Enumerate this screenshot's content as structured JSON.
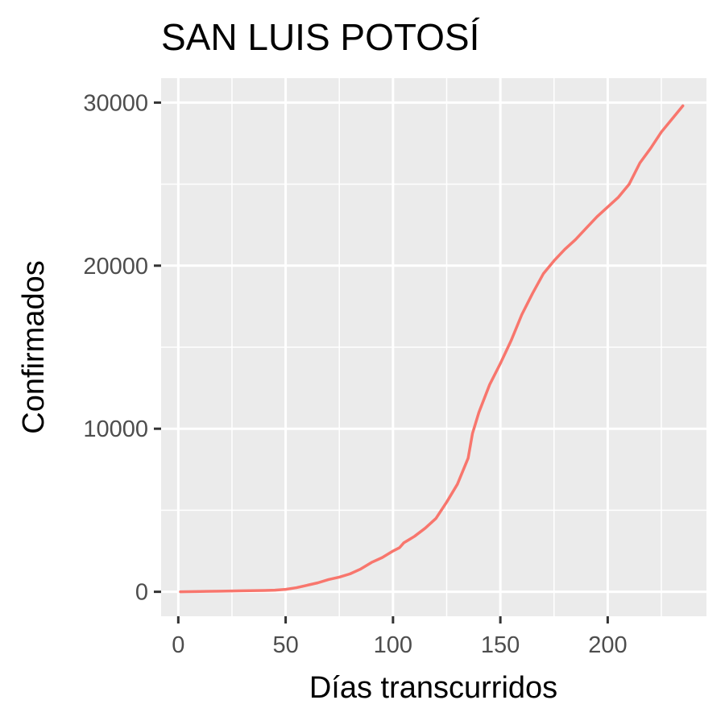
{
  "chart_data": {
    "type": "line",
    "title": "SAN LUIS POTOSÍ",
    "xlabel": "Días transcurridos",
    "ylabel": "Confirmados",
    "xlim": [
      -8,
      246
    ],
    "ylim": [
      -1500,
      31500
    ],
    "x_ticks": [
      0,
      50,
      100,
      150,
      200
    ],
    "y_ticks": [
      0,
      10000,
      20000,
      30000
    ],
    "x_tick_labels": [
      "0",
      "50",
      "100",
      "150",
      "200"
    ],
    "y_tick_labels": [
      "0",
      "10000",
      "20000",
      "30000"
    ],
    "grid": true,
    "legend": "none",
    "series": [
      {
        "color": "#F8766D",
        "x": [
          1,
          10,
          20,
          30,
          40,
          45,
          50,
          55,
          60,
          65,
          70,
          75,
          80,
          85,
          90,
          95,
          100,
          103,
          105,
          110,
          115,
          120,
          125,
          130,
          135,
          137,
          140,
          145,
          150,
          155,
          160,
          165,
          170,
          175,
          180,
          185,
          190,
          195,
          200,
          205,
          210,
          215,
          220,
          225,
          230,
          235
        ],
        "y": [
          0,
          20,
          40,
          60,
          80,
          100,
          150,
          250,
          400,
          550,
          750,
          900,
          1100,
          1400,
          1800,
          2100,
          2500,
          2700,
          3000,
          3400,
          3900,
          4500,
          5500,
          6600,
          8200,
          9700,
          11000,
          12700,
          14000,
          15400,
          17000,
          18300,
          19500,
          20300,
          21000,
          21600,
          22300,
          23000,
          23600,
          24200,
          25000,
          26300,
          27200,
          28200,
          29000,
          29800
        ]
      }
    ]
  }
}
